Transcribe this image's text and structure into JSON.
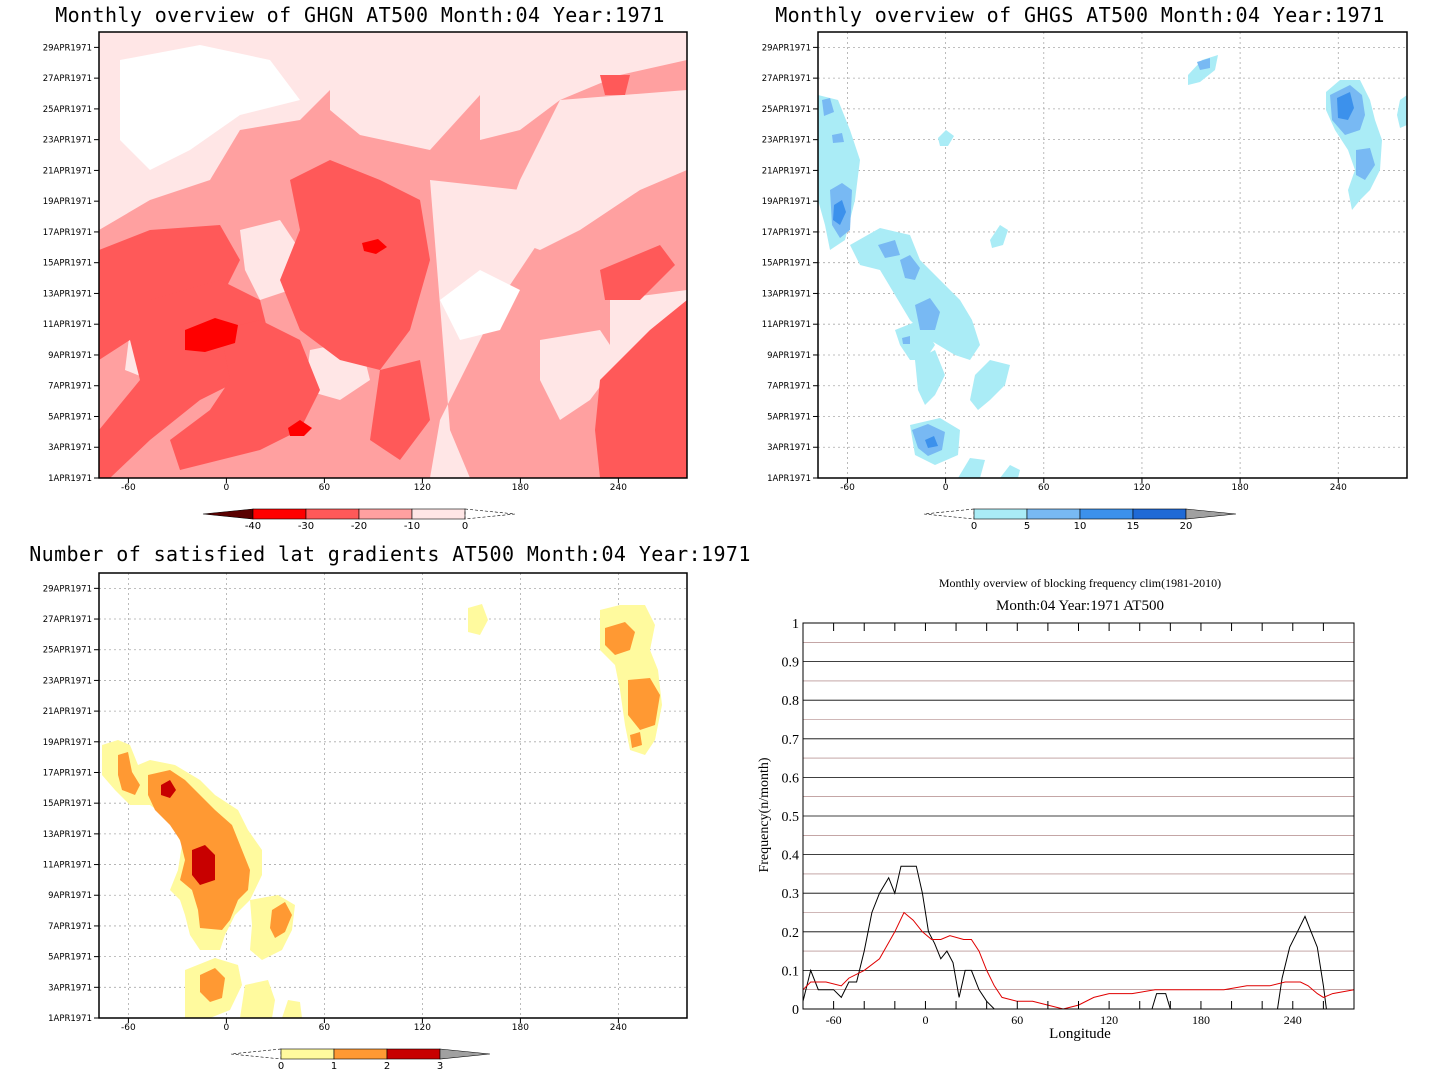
{
  "panels": [
    {
      "id": "ghgn",
      "title": "Monthly overview of GHGN AT500 Month:04 Year:1971",
      "colorbar": {
        "labels": [
          "-40",
          "-30",
          "-20",
          "-10",
          "0"
        ],
        "colors": [
          "#ff0000",
          "#ff5959",
          "#ffa0a0",
          "#ffe6e6"
        ],
        "extend_left_color": "#5a0000"
      }
    },
    {
      "id": "ghgs",
      "title": "Monthly overview of GHGS AT500 Month:04 Year:1971",
      "colorbar": {
        "labels": [
          "0",
          "5",
          "10",
          "15",
          "20"
        ],
        "colors": [
          "#aaecf6",
          "#78b9f3",
          "#3c91ec",
          "#1f6ad6"
        ],
        "extend_right_color": "#a0a0a0"
      }
    },
    {
      "id": "lat",
      "title": "Number of satisfied lat gradients AT500 Month:04 Year:1971",
      "colorbar": {
        "labels": [
          "0",
          "1",
          "2",
          "3"
        ],
        "colors": [
          "#fffa9e",
          "#ff9933",
          "#c80000"
        ],
        "extend_right_color": "#a0a0a0"
      }
    }
  ],
  "hovmoller_axes": {
    "x_ticks": [
      "-60",
      "0",
      "60",
      "120",
      "180",
      "240"
    ],
    "y_ticks": [
      "1APR1971",
      "3APR1971",
      "5APR1971",
      "7APR1971",
      "9APR1971",
      "11APR1971",
      "13APR1971",
      "15APR1971",
      "17APR1971",
      "19APR1971",
      "21APR1971",
      "23APR1971",
      "25APR1971",
      "27APR1971",
      "29APR1971"
    ]
  },
  "chart_data": [
    {
      "type": "heatmap",
      "title": "Monthly overview of GHGN AT500 Month:04 Year:1971",
      "xlim": [
        -78,
        282
      ],
      "ylim": [
        "1APR1971",
        "30APR1971"
      ],
      "levels": [
        -40,
        -30,
        -20,
        -10,
        0
      ],
      "grid": false
    },
    {
      "type": "heatmap",
      "title": "Monthly overview of GHGS AT500 Month:04 Year:1971",
      "xlim": [
        -78,
        282
      ],
      "ylim": [
        "1APR1971",
        "30APR1971"
      ],
      "levels": [
        0,
        5,
        10,
        15,
        20
      ],
      "grid": true
    },
    {
      "type": "heatmap",
      "title": "Number of satisfied lat gradients AT500 Month:04 Year:1971",
      "xlim": [
        -78,
        282
      ],
      "ylim": [
        "1APR1971",
        "30APR1971"
      ],
      "levels": [
        0,
        1,
        2,
        3
      ],
      "grid": true
    },
    {
      "type": "line",
      "title": "Monthly overview of blocking frequency clim(1981-2010)",
      "subtitle": "Month:04 Year:1971  AT500",
      "xlabel": "Longitude",
      "ylabel": "Frequency(n/month)",
      "xlim": [
        -80,
        280
      ],
      "ylim": [
        0,
        1
      ],
      "x_ticks": [
        "-60",
        "0",
        "60",
        "120",
        "180",
        "240"
      ],
      "y_ticks": [
        "0",
        "0.1",
        "0.2",
        "0.3",
        "0.4",
        "0.5",
        "0.6",
        "0.7",
        "0.8",
        "0.9",
        "1"
      ],
      "grid": true,
      "series": [
        {
          "color": "#000000",
          "points": [
            [
              -80,
              0.02
            ],
            [
              -75,
              0.1
            ],
            [
              -70,
              0.05
            ],
            [
              -65,
              0.05
            ],
            [
              -60,
              0.05
            ],
            [
              -55,
              0.03
            ],
            [
              -50,
              0.07
            ],
            [
              -45,
              0.07
            ],
            [
              -40,
              0.15
            ],
            [
              -35,
              0.25
            ],
            [
              -30,
              0.3
            ],
            [
              -24,
              0.34
            ],
            [
              -20,
              0.3
            ],
            [
              -16,
              0.37
            ],
            [
              -6,
              0.37
            ],
            [
              -2,
              0.3
            ],
            [
              2,
              0.2
            ],
            [
              6,
              0.17
            ],
            [
              10,
              0.13
            ],
            [
              14,
              0.15
            ],
            [
              18,
              0.12
            ],
            [
              22,
              0.03
            ],
            [
              26,
              0.1
            ],
            [
              30,
              0.1
            ],
            [
              35,
              0.05
            ],
            [
              40,
              0.02
            ],
            [
              45,
              0
            ],
            [
              100,
              0
            ],
            [
              148,
              0
            ],
            [
              151,
              0.04
            ],
            [
              157,
              0.04
            ],
            [
              160,
              0
            ],
            [
              230,
              0
            ],
            [
              233,
              0.08
            ],
            [
              238,
              0.16
            ],
            [
              243,
              0.2
            ],
            [
              248,
              0.24
            ],
            [
              252,
              0.2
            ],
            [
              256,
              0.16
            ],
            [
              260,
              0.06
            ],
            [
              262,
              0
            ],
            [
              280,
              0
            ]
          ]
        },
        {
          "color": "#e00000",
          "points": [
            [
              -80,
              0.05
            ],
            [
              -75,
              0.07
            ],
            [
              -65,
              0.07
            ],
            [
              -55,
              0.06
            ],
            [
              -50,
              0.08
            ],
            [
              -40,
              0.1
            ],
            [
              -30,
              0.13
            ],
            [
              -20,
              0.2
            ],
            [
              -14,
              0.25
            ],
            [
              -8,
              0.23
            ],
            [
              -2,
              0.2
            ],
            [
              4,
              0.18
            ],
            [
              10,
              0.18
            ],
            [
              16,
              0.19
            ],
            [
              25,
              0.18
            ],
            [
              30,
              0.18
            ],
            [
              35,
              0.15
            ],
            [
              40,
              0.1
            ],
            [
              45,
              0.06
            ],
            [
              50,
              0.03
            ],
            [
              60,
              0.02
            ],
            [
              70,
              0.02
            ],
            [
              80,
              0.01
            ],
            [
              90,
              0
            ],
            [
              100,
              0.01
            ],
            [
              110,
              0.03
            ],
            [
              120,
              0.04
            ],
            [
              135,
              0.04
            ],
            [
              150,
              0.05
            ],
            [
              165,
              0.05
            ],
            [
              180,
              0.05
            ],
            [
              195,
              0.05
            ],
            [
              210,
              0.06
            ],
            [
              225,
              0.06
            ],
            [
              235,
              0.07
            ],
            [
              245,
              0.07
            ],
            [
              250,
              0.06
            ],
            [
              256,
              0.04
            ],
            [
              260,
              0.03
            ],
            [
              266,
              0.04
            ],
            [
              280,
              0.05
            ]
          ]
        }
      ]
    }
  ]
}
